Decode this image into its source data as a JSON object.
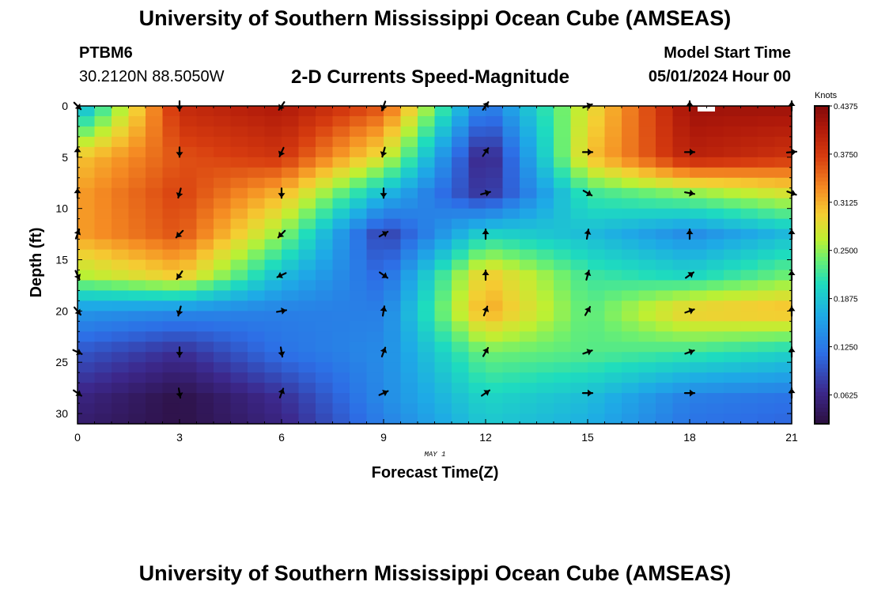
{
  "header": {
    "title": "University of Southern Mississippi Ocean Cube (AMSEAS)",
    "station_id": "PTBM6",
    "coords": "30.2120N  88.5050W",
    "plot_title": "2-D Currents Speed-Magnitude",
    "model_start_label": "Model Start Time",
    "model_start_value": "05/01/2024 Hour 00"
  },
  "footer": {
    "title": "University of Southern Mississippi Ocean Cube (AMSEAS)"
  },
  "colors": {
    "low": "#2c0f3f",
    "mid_low": "#2f7ff0",
    "mid": "#d2e830",
    "high": "#8a0c0c"
  },
  "chart_data": {
    "type": "heatmap",
    "xlabel": "Forecast Time(Z)",
    "ylabel": "Depth (ft)",
    "date_label": "MAY 1",
    "xlim": [
      0,
      21
    ],
    "ylim": [
      0,
      31
    ],
    "x_ticks": [
      0,
      3,
      6,
      9,
      12,
      15,
      18,
      21
    ],
    "y_ticks": [
      0,
      5,
      10,
      15,
      20,
      25,
      30
    ],
    "colorbar": {
      "label": "Knots",
      "min": 0.025,
      "max": 0.4375,
      "ticks": [
        "0.4375",
        "0.3750",
        "0.3125",
        "0.2500",
        "0.1875",
        "0.1250",
        "0.0625"
      ]
    },
    "grid": {
      "times": [
        0,
        3,
        6,
        9,
        12,
        15,
        18,
        21
      ],
      "depths": [
        0,
        5,
        8.5,
        12.5,
        16.5,
        20,
        24,
        28.5,
        31
      ],
      "speed": [
        [
          0.16,
          0.39,
          0.41,
          0.36,
          0.12,
          0.28,
          0.42,
          0.42
        ],
        [
          0.3,
          0.36,
          0.38,
          0.28,
          0.05,
          0.3,
          0.4,
          0.38
        ],
        [
          0.32,
          0.37,
          0.31,
          0.18,
          0.07,
          0.22,
          0.25,
          0.28
        ],
        [
          0.32,
          0.36,
          0.25,
          0.08,
          0.2,
          0.18,
          0.14,
          0.18
        ],
        [
          0.26,
          0.3,
          0.18,
          0.11,
          0.3,
          0.22,
          0.2,
          0.24
        ],
        [
          0.15,
          0.14,
          0.13,
          0.13,
          0.32,
          0.23,
          0.3,
          0.31
        ],
        [
          0.1,
          0.07,
          0.12,
          0.14,
          0.24,
          0.23,
          0.22,
          0.2
        ],
        [
          0.06,
          0.03,
          0.07,
          0.14,
          0.2,
          0.18,
          0.13,
          0.12
        ],
        [
          0.05,
          0.03,
          0.06,
          0.13,
          0.19,
          0.17,
          0.12,
          0.11
        ]
      ]
    },
    "vectors": {
      "times": [
        0,
        3,
        6,
        9,
        12,
        15,
        18,
        21
      ],
      "depths": [
        0,
        4.5,
        8.5,
        12.5,
        16.5,
        20,
        24,
        28
      ],
      "angles": [
        [
          135,
          180,
          215,
          200,
          35,
          70,
          0,
          0
        ],
        [
          0,
          180,
          205,
          195,
          35,
          90,
          90,
          85
        ],
        [
          0,
          195,
          180,
          180,
          75,
          120,
          100,
          110
        ],
        [
          20,
          225,
          225,
          60,
          0,
          10,
          0,
          0
        ],
        [
          155,
          215,
          245,
          125,
          0,
          15,
          55,
          0
        ],
        [
          140,
          195,
          80,
          10,
          20,
          30,
          70,
          0
        ],
        [
          115,
          180,
          170,
          20,
          30,
          70,
          70,
          0
        ],
        [
          125,
          170,
          20,
          65,
          55,
          90,
          90,
          0
        ]
      ]
    }
  }
}
